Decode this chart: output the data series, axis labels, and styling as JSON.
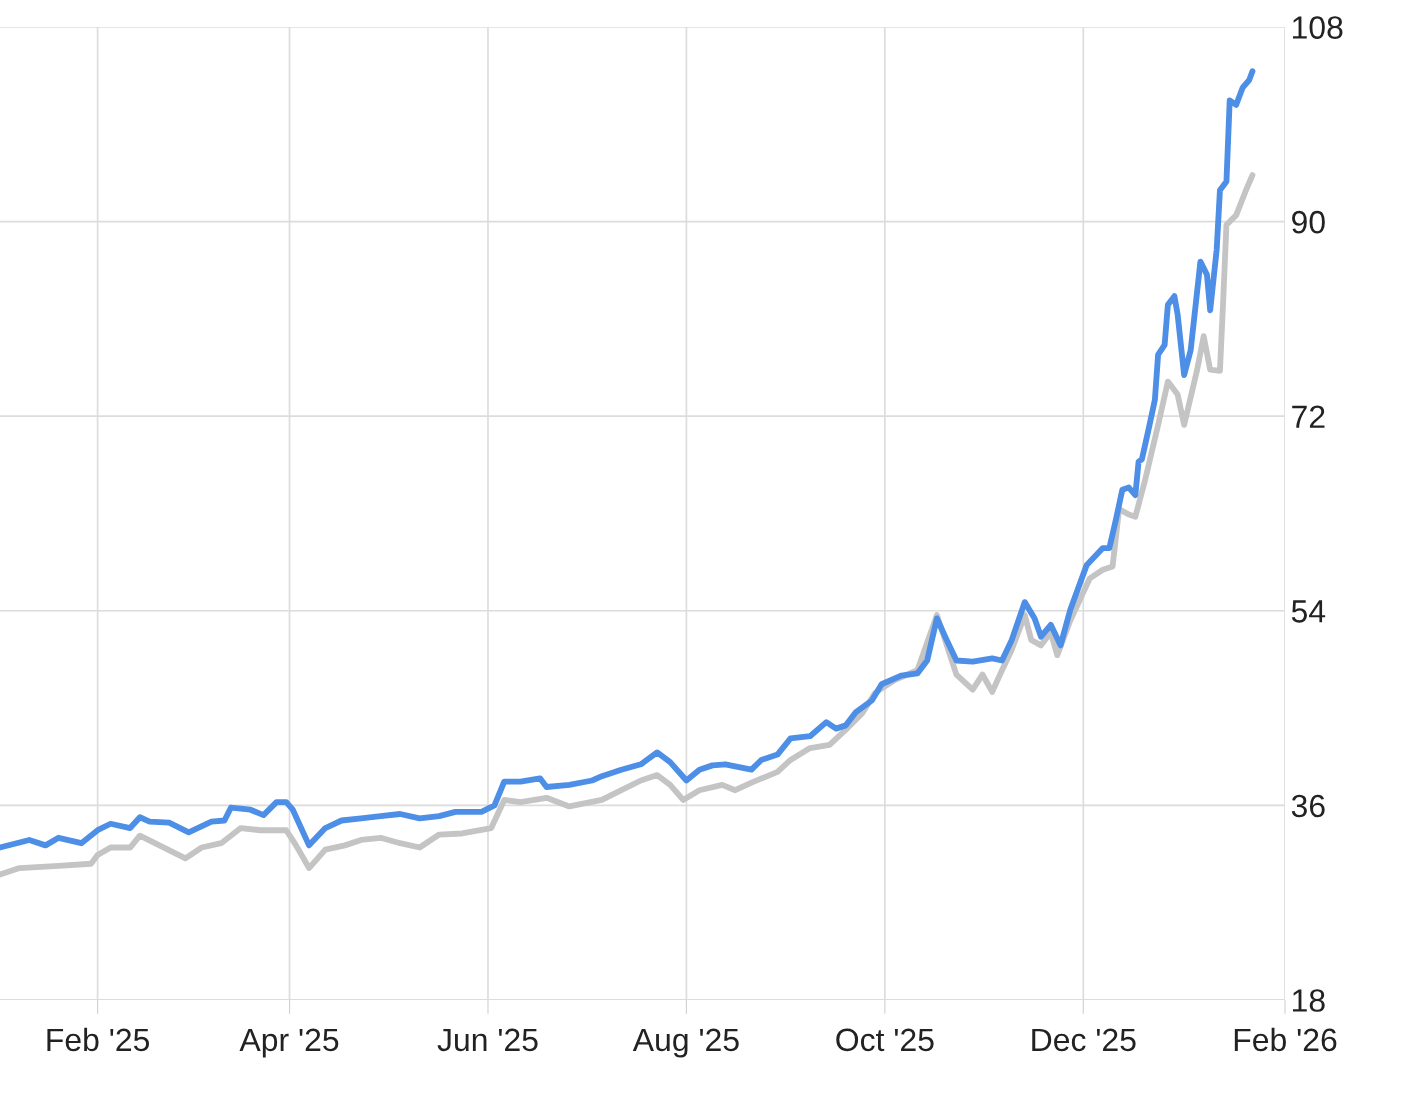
{
  "chart_data": {
    "type": "line",
    "grid": true,
    "line_style": "solid",
    "marker": "none",
    "xlim": [
      "2025-01-02",
      "2026-02-01"
    ],
    "xticks": [
      {
        "value": "2025-02-01",
        "label": "Feb '25"
      },
      {
        "value": "2025-04-01",
        "label": "Apr '25"
      },
      {
        "value": "2025-06-01",
        "label": "Jun '25"
      },
      {
        "value": "2025-08-01",
        "label": "Aug '25"
      },
      {
        "value": "2025-10-01",
        "label": "Oct '25"
      },
      {
        "value": "2025-12-01",
        "label": "Dec '25"
      },
      {
        "value": "2026-02-01",
        "label": "Feb '26"
      }
    ],
    "ylim": [
      18,
      108
    ],
    "yticks": [
      18,
      36,
      54,
      72,
      90,
      108
    ],
    "series": [
      {
        "color": "#c4c4c4",
        "x": [
          "2025-01-02",
          "2025-01-08",
          "2025-01-20",
          "2025-01-30",
          "2025-02-01",
          "2025-02-05",
          "2025-02-11",
          "2025-02-14",
          "2025-02-20",
          "2025-02-28",
          "2025-03-05",
          "2025-03-11",
          "2025-03-17",
          "2025-03-23",
          "2025-03-31",
          "2025-04-03",
          "2025-04-07",
          "2025-04-12",
          "2025-04-18",
          "2025-04-23",
          "2025-04-29",
          "2025-05-05",
          "2025-05-11",
          "2025-05-17",
          "2025-05-24",
          "2025-06-02",
          "2025-06-06",
          "2025-06-11",
          "2025-06-19",
          "2025-06-26",
          "2025-07-06",
          "2025-07-12",
          "2025-07-18",
          "2025-07-23",
          "2025-07-27",
          "2025-07-31",
          "2025-08-05",
          "2025-08-12",
          "2025-08-16",
          "2025-08-21",
          "2025-08-29",
          "2025-09-02",
          "2025-09-08",
          "2025-09-14",
          "2025-09-19",
          "2025-09-24",
          "2025-09-28",
          "2025-10-04",
          "2025-10-11",
          "2025-10-17",
          "2025-10-23",
          "2025-10-28",
          "2025-10-31",
          "2025-11-03",
          "2025-11-06",
          "2025-11-09",
          "2025-11-13",
          "2025-11-15",
          "2025-11-18",
          "2025-11-21",
          "2025-11-23",
          "2025-11-27",
          "2025-12-03",
          "2025-12-07",
          "2025-12-10",
          "2025-12-12",
          "2025-12-15",
          "2025-12-17",
          "2025-12-20",
          "2025-12-24",
          "2025-12-27",
          "2025-12-30",
          "2026-01-01",
          "2026-01-05",
          "2026-01-07",
          "2026-01-09",
          "2026-01-12",
          "2026-01-13",
          "2026-01-14",
          "2026-01-17",
          "2026-01-20",
          "2026-01-22"
        ],
        "values": [
          29.6,
          30.2,
          30.4,
          30.6,
          31.4,
          32.1,
          32.1,
          33.2,
          32.3,
          31.1,
          32.1,
          32.5,
          33.9,
          33.7,
          33.7,
          32.3,
          30.2,
          31.9,
          32.3,
          32.8,
          33.0,
          32.5,
          32.1,
          33.3,
          33.4,
          33.9,
          36.5,
          36.3,
          36.7,
          35.9,
          36.5,
          37.4,
          38.3,
          38.8,
          37.9,
          36.5,
          37.4,
          37.9,
          37.4,
          38.1,
          39.1,
          40.2,
          41.3,
          41.6,
          43.0,
          44.5,
          46.4,
          47.6,
          48.5,
          53.6,
          48.1,
          46.7,
          48.1,
          46.5,
          48.5,
          50.4,
          53.6,
          51.3,
          50.8,
          52.0,
          49.9,
          53.1,
          57.0,
          57.8,
          58.1,
          63.4,
          62.9,
          62.7,
          66.1,
          71.2,
          75.2,
          74.0,
          71.2,
          76.3,
          79.4,
          76.3,
          76.2,
          82.7,
          89.7,
          90.6,
          92.9,
          94.3
        ]
      },
      {
        "color": "#4d8ee6",
        "x": [
          "2025-01-02",
          "2025-01-11",
          "2025-01-16",
          "2025-01-20",
          "2025-01-27",
          "2025-02-01",
          "2025-02-05",
          "2025-02-11",
          "2025-02-14",
          "2025-02-17",
          "2025-02-23",
          "2025-03-01",
          "2025-03-08",
          "2025-03-12",
          "2025-03-14",
          "2025-03-20",
          "2025-03-24",
          "2025-03-28",
          "2025-03-31",
          "2025-04-02",
          "2025-04-07",
          "2025-04-12",
          "2025-04-17",
          "2025-04-23",
          "2025-04-29",
          "2025-05-05",
          "2025-05-11",
          "2025-05-17",
          "2025-05-22",
          "2025-05-30",
          "2025-06-03",
          "2025-06-06",
          "2025-06-11",
          "2025-06-17",
          "2025-06-19",
          "2025-06-26",
          "2025-07-03",
          "2025-07-06",
          "2025-07-12",
          "2025-07-18",
          "2025-07-23",
          "2025-07-27",
          "2025-08-01",
          "2025-08-05",
          "2025-08-09",
          "2025-08-13",
          "2025-08-16",
          "2025-08-21",
          "2025-08-24",
          "2025-08-29",
          "2025-09-02",
          "2025-09-08",
          "2025-09-13",
          "2025-09-16",
          "2025-09-19",
          "2025-09-22",
          "2025-09-27",
          "2025-09-30",
          "2025-10-06",
          "2025-10-11",
          "2025-10-14",
          "2025-10-17",
          "2025-10-20",
          "2025-10-23",
          "2025-10-28",
          "2025-11-03",
          "2025-11-06",
          "2025-11-09",
          "2025-11-13",
          "2025-11-16",
          "2025-11-18",
          "2025-11-21",
          "2025-11-24",
          "2025-11-27",
          "2025-12-02",
          "2025-12-07",
          "2025-12-09",
          "2025-12-11",
          "2025-12-13",
          "2025-12-15",
          "2025-12-17",
          "2025-12-18",
          "2025-12-19",
          "2025-12-21",
          "2025-12-23",
          "2025-12-24",
          "2025-12-26",
          "2025-12-27",
          "2025-12-29",
          "2025-12-30",
          "2026-01-01",
          "2026-01-03",
          "2026-01-06",
          "2026-01-08",
          "2026-01-09",
          "2026-01-11",
          "2026-01-12",
          "2026-01-14",
          "2026-01-15",
          "2026-01-17",
          "2026-01-19",
          "2026-01-21",
          "2026-01-22"
        ],
        "values": [
          32.1,
          32.8,
          32.3,
          33.0,
          32.5,
          33.7,
          34.3,
          33.9,
          34.9,
          34.5,
          34.4,
          33.5,
          34.5,
          34.6,
          35.8,
          35.6,
          35.1,
          36.3,
          36.3,
          35.6,
          32.3,
          33.9,
          34.6,
          34.8,
          35.0,
          35.2,
          34.8,
          35.0,
          35.4,
          35.4,
          36.0,
          38.2,
          38.2,
          38.5,
          37.7,
          37.9,
          38.3,
          38.7,
          39.3,
          39.8,
          40.9,
          40.0,
          38.3,
          39.3,
          39.7,
          39.8,
          39.6,
          39.3,
          40.2,
          40.7,
          42.2,
          42.4,
          43.7,
          43.1,
          43.4,
          44.6,
          45.7,
          47.2,
          48.0,
          48.2,
          49.4,
          53.3,
          51.3,
          49.4,
          49.3,
          49.6,
          49.4,
          51.3,
          54.8,
          53.3,
          51.6,
          52.7,
          50.8,
          54.1,
          58.2,
          59.8,
          59.8,
          62.4,
          65.2,
          65.4,
          64.7,
          67.8,
          68.0,
          70.7,
          73.5,
          77.7,
          78.6,
          82.3,
          83.1,
          81.4,
          75.8,
          78.1,
          86.3,
          85.1,
          81.8,
          87.4,
          92.9,
          93.7,
          101.2,
          100.8,
          102.4,
          103.1,
          103.9
        ]
      }
    ]
  }
}
